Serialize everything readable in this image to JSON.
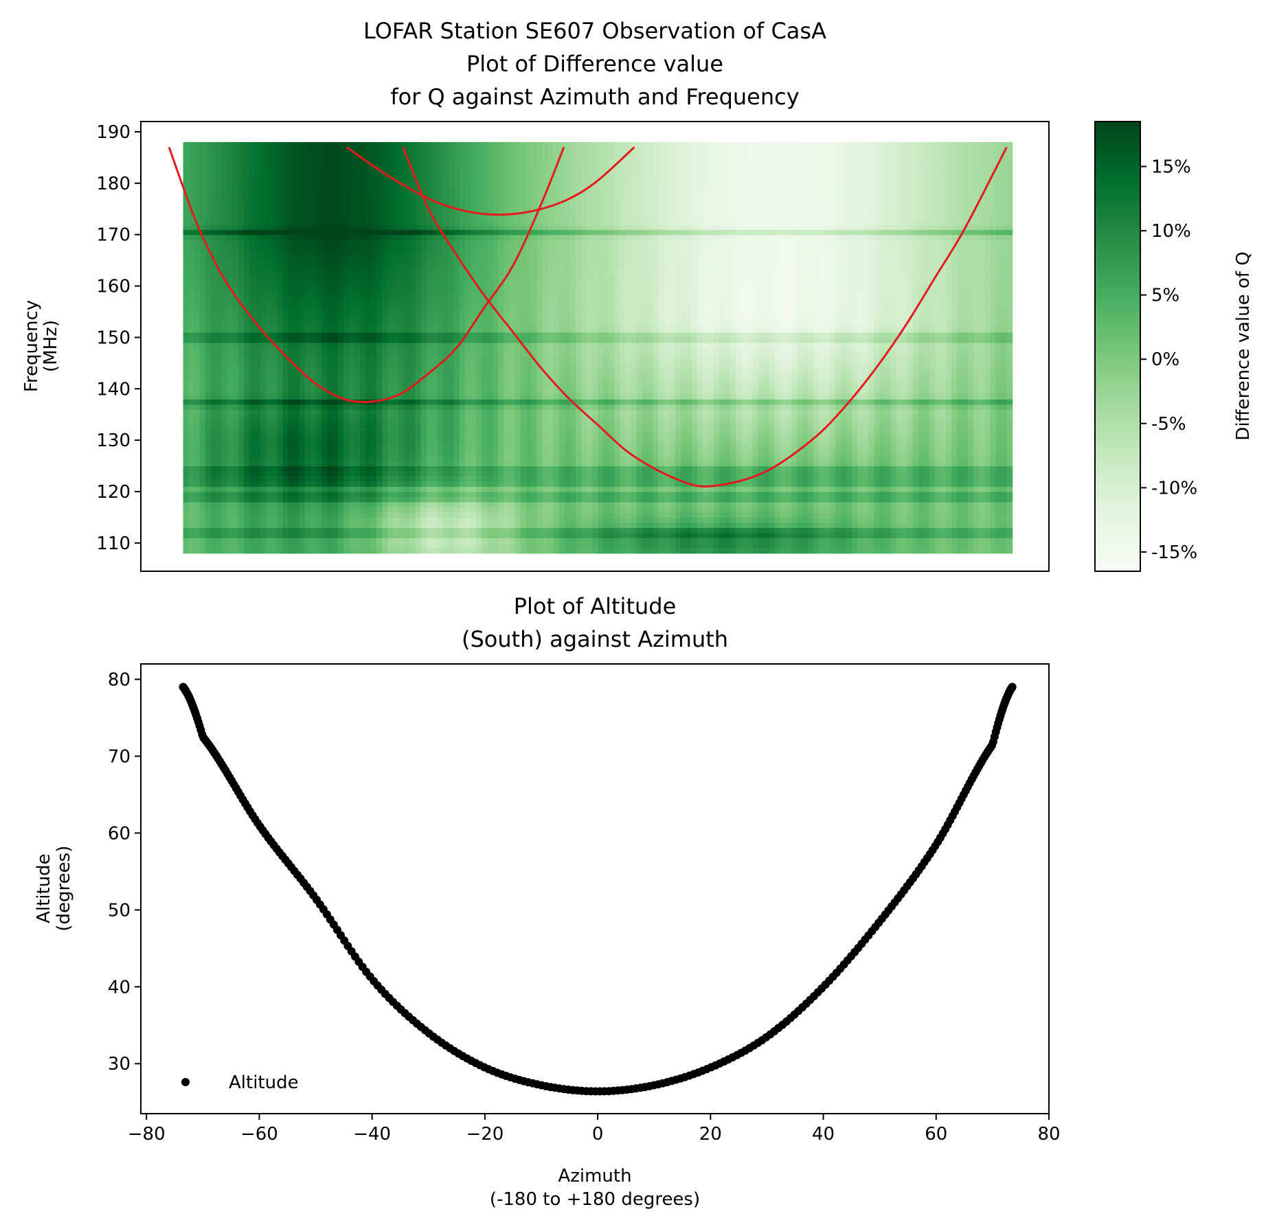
{
  "chart_data": [
    {
      "type": "heatmap",
      "title": [
        "LOFAR Station SE607 Observation of CasA",
        "Plot of Difference value",
        "for Q against Azimuth and Frequency"
      ],
      "ylabel": [
        "Frequency",
        "(MHz)"
      ],
      "xlim": [
        -81,
        80
      ],
      "ylim": [
        104.5,
        192
      ],
      "yticks": [
        110,
        120,
        130,
        140,
        150,
        160,
        170,
        180,
        190
      ],
      "ytick_labels": [
        "110",
        "120",
        "130",
        "140",
        "150",
        "160",
        "170",
        "180",
        "190"
      ],
      "data_extent": {
        "azimuth": [
          -73.5,
          73.5
        ],
        "frequency": [
          108,
          188
        ]
      },
      "colormap": "Greens",
      "colorbar": {
        "label": "Difference value of Q",
        "range": [
          -16.5,
          18.5
        ],
        "ticks": [
          15,
          10,
          5,
          0,
          -5,
          -10,
          -15
        ],
        "tick_labels": [
          "15%",
          "10%",
          "5%",
          "0%",
          "-5%",
          "-10%",
          "-15%"
        ]
      },
      "overlay_curves": [
        {
          "name": "curve-1",
          "color": "#e41a1c",
          "az": [
            -76,
            -71,
            -66,
            -60,
            -55,
            -50,
            -45,
            -40,
            -35,
            -30,
            -25,
            -20,
            -15,
            -10,
            -6
          ],
          "freq": [
            187,
            172,
            161,
            152,
            146,
            141,
            138,
            137.5,
            139,
            143,
            148,
            156,
            164,
            176,
            187
          ]
        },
        {
          "name": "curve-2",
          "color": "#e41a1c",
          "az": [
            -44.5,
            -40,
            -35,
            -30,
            -25,
            -20,
            -15,
            -10,
            -5,
            0,
            6.5
          ],
          "freq": [
            187,
            183.5,
            180,
            177,
            175,
            174,
            174,
            175,
            177,
            180.5,
            187
          ]
        },
        {
          "name": "curve-3",
          "color": "#e41a1c",
          "az": [
            -34.5,
            -30,
            -25,
            -20,
            -15,
            -10,
            -5,
            0,
            5,
            10,
            15,
            19,
            25,
            30,
            35,
            40,
            45,
            50,
            55,
            60,
            65,
            72.5
          ],
          "freq": [
            187,
            175,
            166,
            158,
            151,
            144,
            138,
            133,
            128,
            124.5,
            122,
            121,
            122,
            124,
            127.5,
            132,
            138,
            145,
            153,
            162,
            171,
            187
          ]
        }
      ],
      "horizontal_band_frequencies": [
        170.5,
        150,
        137.3,
        124,
        122,
        119,
        112
      ]
    },
    {
      "type": "scatter",
      "title": [
        "Plot of Altitude",
        "(South) against Azimuth"
      ],
      "xlabel": [
        "Azimuth",
        "(-180 to +180 degrees)"
      ],
      "ylabel": [
        "Altitude",
        "(degrees)"
      ],
      "xlim": [
        -81,
        80
      ],
      "ylim": [
        23.5,
        82
      ],
      "xticks": [
        -80,
        -60,
        -40,
        -20,
        0,
        20,
        40,
        60,
        80
      ],
      "xtick_labels": [
        "−80",
        "−60",
        "−40",
        "−20",
        "0",
        "20",
        "40",
        "60",
        "80"
      ],
      "yticks": [
        30,
        40,
        50,
        60,
        70,
        80
      ],
      "ytick_labels": [
        "30",
        "40",
        "50",
        "60",
        "70",
        "80"
      ],
      "legend": {
        "label": "Altitude",
        "placement": "lower-left"
      },
      "series": [
        {
          "name": "Altitude",
          "color": "#000000",
          "marker": "circle",
          "az_range": [
            -73.5,
            73.5
          ],
          "n_points": 290,
          "key_points": [
            [
              -73.5,
              79
            ],
            [
              -70,
              72.5
            ],
            [
              -60,
              61
            ],
            [
              -50,
              51.5
            ],
            [
              -40,
              41
            ],
            [
              -30,
              34
            ],
            [
              -20,
              29.5
            ],
            [
              -10,
              27.2
            ],
            [
              0,
              26.4
            ],
            [
              10,
              27.2
            ],
            [
              20,
              29.5
            ],
            [
              30,
              33.5
            ],
            [
              40,
              40
            ],
            [
              50,
              48.5
            ],
            [
              60,
              58.5
            ],
            [
              70,
              71.5
            ],
            [
              73.5,
              79
            ]
          ]
        }
      ]
    }
  ]
}
